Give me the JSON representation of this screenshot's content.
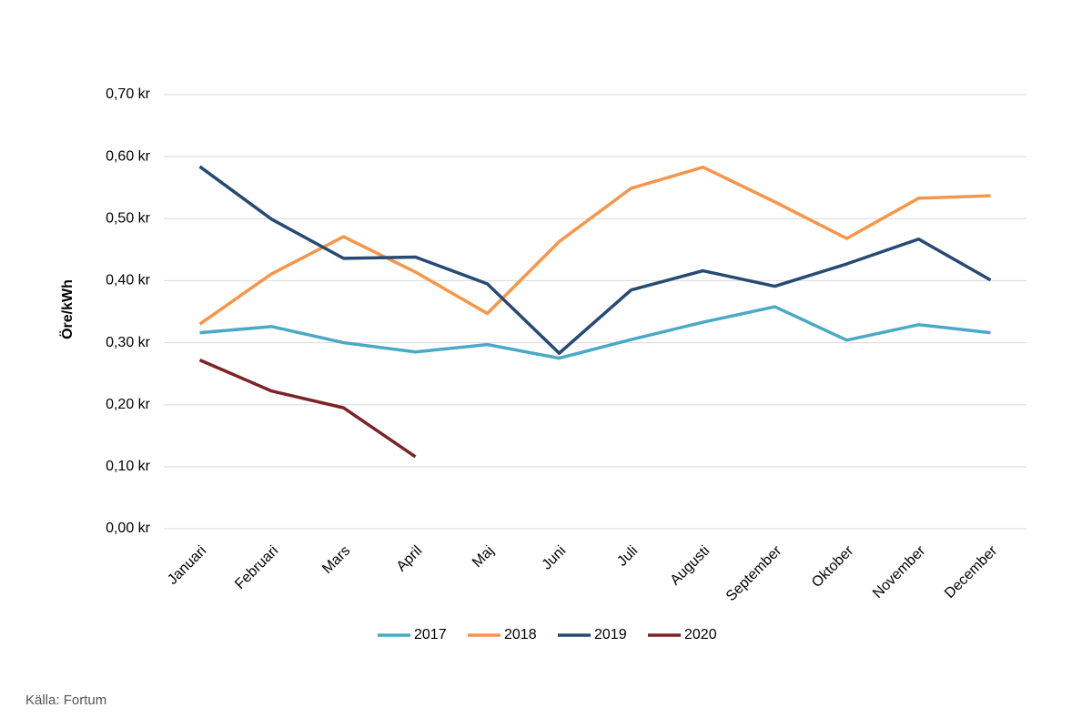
{
  "chart_data": {
    "type": "line",
    "y_label": "Öre/kWh",
    "source": "Källa: Fortum",
    "categories": [
      "Januari",
      "Februari",
      "Mars",
      "April",
      "Maj",
      "Juni",
      "Juli",
      "Augusti",
      "September",
      "Oktober",
      "November",
      "December"
    ],
    "series": [
      {
        "name": "2017",
        "color": "#4aa9c5",
        "values": [
          0.316,
          0.326,
          0.3,
          0.285,
          0.297,
          0.275,
          0.305,
          0.333,
          0.358,
          0.304,
          0.329,
          0.316
        ]
      },
      {
        "name": "2018",
        "color": "#f5964a",
        "values": [
          0.33,
          0.411,
          0.471,
          0.414,
          0.347,
          0.463,
          0.549,
          0.583,
          0.527,
          0.468,
          0.533,
          0.537
        ]
      },
      {
        "name": "2019",
        "color": "#264a73",
        "values": [
          0.584,
          0.499,
          0.436,
          0.438,
          0.395,
          0.283,
          0.385,
          0.416,
          0.391,
          0.427,
          0.467,
          0.401
        ]
      },
      {
        "name": "2020",
        "color": "#7b2427",
        "values": [
          0.272,
          0.222,
          0.195,
          0.116,
          null,
          null,
          null,
          null,
          null,
          null,
          null,
          null
        ]
      }
    ],
    "ylim": [
      0,
      0.7
    ],
    "yticks": [
      {
        "value": 0,
        "label": "0,00 kr"
      },
      {
        "value": 0.1,
        "label": "0,10 kr"
      },
      {
        "value": 0.2,
        "label": "0,20 kr"
      },
      {
        "value": 0.3,
        "label": "0,30 kr"
      },
      {
        "value": 0.4,
        "label": "0,40 kr"
      },
      {
        "value": 0.5,
        "label": "0,50 kr"
      },
      {
        "value": 0.6,
        "label": "0,60 kr"
      },
      {
        "value": 0.7,
        "label": "0,70 kr"
      }
    ],
    "grid": true,
    "legend": "bottom"
  }
}
